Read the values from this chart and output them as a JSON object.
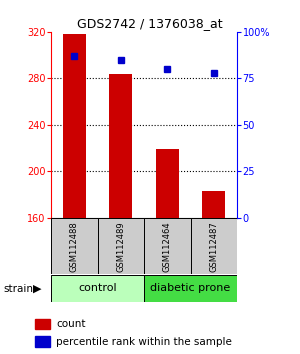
{
  "title": "GDS2742 / 1376038_at",
  "samples": [
    "GSM112488",
    "GSM112489",
    "GSM112464",
    "GSM112487"
  ],
  "counts": [
    318,
    284,
    219,
    183
  ],
  "percentiles": [
    87,
    85,
    80,
    78
  ],
  "ylim_left": [
    160,
    320
  ],
  "ylim_right": [
    0,
    100
  ],
  "yticks_left": [
    160,
    200,
    240,
    280,
    320
  ],
  "yticks_right": [
    0,
    25,
    50,
    75,
    100
  ],
  "groups": [
    {
      "label": "control",
      "samples": [
        0,
        1
      ],
      "color": "#bbffbb"
    },
    {
      "label": "diabetic prone",
      "samples": [
        2,
        3
      ],
      "color": "#44dd44"
    }
  ],
  "bar_color": "#cc0000",
  "percentile_color": "#0000cc",
  "bar_width": 0.5,
  "background_color": "#ffffff",
  "sample_box_color": "#cccccc",
  "strain_label": "strain",
  "legend_count_label": "count",
  "legend_pct_label": "percentile rank within the sample"
}
